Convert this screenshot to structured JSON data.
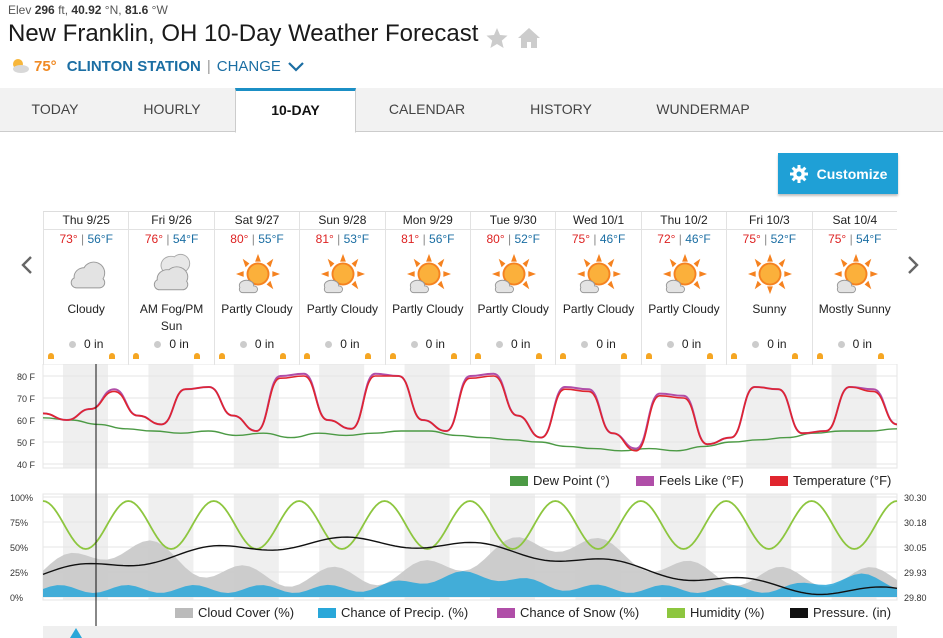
{
  "header": {
    "elev_label": "Elev",
    "elev_value": "296",
    "elev_unit": "ft,",
    "lat_value": "40.92",
    "lat_unit": "°N,",
    "lon_value": "81.6",
    "lon_unit": "°W",
    "title": "New Franklin, OH 10-Day Weather Forecast",
    "current_temp": "75°",
    "station": "CLINTON STATION",
    "change_label": "CHANGE"
  },
  "tabs": [
    "TODAY",
    "HOURLY",
    "10-DAY",
    "CALENDAR",
    "HISTORY",
    "WUNDERMAP"
  ],
  "active_tab": "10-DAY",
  "customize_label": "Customize",
  "days": [
    {
      "name": "Thu 9/25",
      "hi": "73°",
      "lo": "56°F",
      "cond": "Cloudy",
      "icon": "cloudy-icon",
      "precip": "0 in"
    },
    {
      "name": "Fri 9/26",
      "hi": "76°",
      "lo": "54°F",
      "cond": "AM Fog/PM Sun",
      "icon": "fog-icon",
      "precip": "0 in"
    },
    {
      "name": "Sat 9/27",
      "hi": "80°",
      "lo": "55°F",
      "cond": "Partly Cloudy",
      "icon": "partly-cloudy-icon",
      "precip": "0 in"
    },
    {
      "name": "Sun 9/28",
      "hi": "81°",
      "lo": "53°F",
      "cond": "Partly Cloudy",
      "icon": "partly-cloudy-icon",
      "precip": "0 in"
    },
    {
      "name": "Mon 9/29",
      "hi": "81°",
      "lo": "56°F",
      "cond": "Partly Cloudy",
      "icon": "partly-cloudy-icon",
      "precip": "0 in"
    },
    {
      "name": "Tue 9/30",
      "hi": "80°",
      "lo": "52°F",
      "cond": "Partly Cloudy",
      "icon": "partly-cloudy-icon",
      "precip": "0 in"
    },
    {
      "name": "Wed 10/1",
      "hi": "75°",
      "lo": "46°F",
      "cond": "Partly Cloudy",
      "icon": "partly-cloudy-icon",
      "precip": "0 in"
    },
    {
      "name": "Thu 10/2",
      "hi": "72°",
      "lo": "46°F",
      "cond": "Partly Cloudy",
      "icon": "partly-cloudy-icon",
      "precip": "0 in"
    },
    {
      "name": "Fri 10/3",
      "hi": "75°",
      "lo": "52°F",
      "cond": "Sunny",
      "icon": "sunny-icon",
      "precip": "0 in"
    },
    {
      "name": "Sat 10/4",
      "hi": "75°",
      "lo": "54°F",
      "cond": "Mostly Sunny",
      "icon": "partly-cloudy-icon",
      "precip": "0 in"
    }
  ],
  "colors": {
    "temp": "#e0252e",
    "feels": "#b04ea8",
    "dew": "#4c9a45",
    "cloud": "#bbbbbb",
    "precip": "#29a7d9",
    "humidity": "#8dc63f",
    "pressure": "#111111"
  },
  "chart_data": [
    {
      "type": "line",
      "ylim": [
        40,
        80
      ],
      "yticks": [
        "80 F",
        "70 F",
        "60 F",
        "50 F",
        "40 F"
      ],
      "series": [
        {
          "name": "Dew Point (°)",
          "values": [
            61,
            60,
            58,
            56,
            55,
            54,
            55,
            53,
            54,
            52,
            54,
            53,
            54,
            55,
            55,
            53,
            52,
            51,
            50,
            48,
            47,
            46,
            47,
            46,
            48,
            50,
            51,
            52,
            54,
            55,
            55,
            56
          ]
        },
        {
          "name": "Feels Like (°F)",
          "values": [
            63,
            60,
            65,
            74,
            62,
            58,
            74,
            75,
            62,
            55,
            80,
            81,
            60,
            56,
            81,
            80,
            60,
            55,
            80,
            81,
            62,
            52,
            75,
            74,
            54,
            47,
            72,
            71,
            49,
            52,
            75,
            74,
            54,
            55,
            75,
            74,
            58
          ]
        },
        {
          "name": "Temperature (°F)",
          "values": [
            63,
            60,
            65,
            73,
            62,
            58,
            74,
            75,
            62,
            55,
            79,
            80,
            60,
            56,
            80,
            80,
            60,
            55,
            79,
            80,
            62,
            52,
            74,
            73,
            54,
            46,
            71,
            70,
            49,
            52,
            75,
            74,
            54,
            55,
            75,
            73,
            58
          ]
        }
      ]
    },
    {
      "type": "area",
      "ylim": [
        0,
        100
      ],
      "yticks": [
        "100%",
        "75%",
        "50%",
        "25%",
        "0%"
      ],
      "y2ticks": [
        "30.30",
        "30.18",
        "30.05",
        "29.93",
        "29.80"
      ],
      "series": [
        {
          "name": "Cloud Cover (%)"
        },
        {
          "name": "Chance of Precip. (%)"
        },
        {
          "name": "Chance of Snow (%)"
        },
        {
          "name": "Humidity (%)"
        },
        {
          "name": "Pressure. (in)"
        }
      ]
    }
  ]
}
